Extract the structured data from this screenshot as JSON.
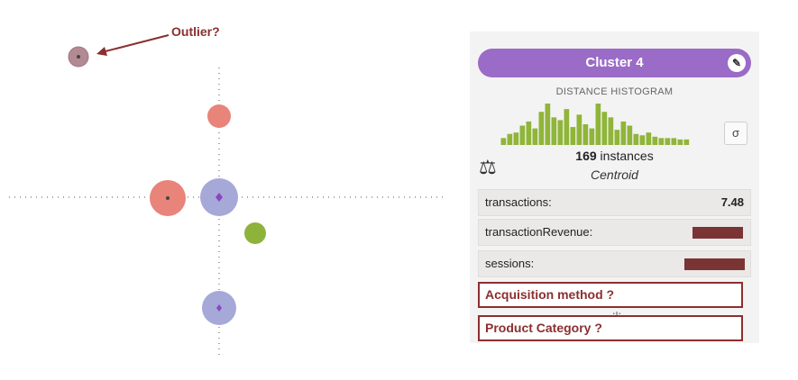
{
  "annotation": {
    "outlier_label": "Outlier?"
  },
  "cluster_panel": {
    "title": "Cluster 4",
    "histogram_title": "DISTANCE HISTOGRAM",
    "histogram_values": [
      5,
      8,
      9,
      14,
      17,
      12,
      24,
      30,
      20,
      18,
      26,
      13,
      22,
      15,
      12,
      30,
      24,
      20,
      11,
      17,
      14,
      8,
      7,
      9,
      6,
      5,
      5,
      5,
      4,
      4
    ],
    "histogram_color": "#8fb53a",
    "sigma_label": "σ",
    "instances_count": "169",
    "instances_label": "instances",
    "centroid_label": "Centroid",
    "fields": [
      {
        "label": "transactions:",
        "value": "7.48"
      },
      {
        "label": "transactionRevenue:",
        "value": ""
      },
      {
        "label": "sessions:",
        "value": ""
      }
    ],
    "questions": [
      {
        "label": "Acquisition method ?"
      },
      {
        "label": "Product Category ?"
      }
    ]
  },
  "colors": {
    "header_purple": "#9b6bc8",
    "cluster_red": "#e8847a",
    "cluster_blue": "#a6a8d8",
    "cluster_green": "#8db33a",
    "outlier": "#b28a93",
    "annotation_red": "#8b2f2f"
  }
}
